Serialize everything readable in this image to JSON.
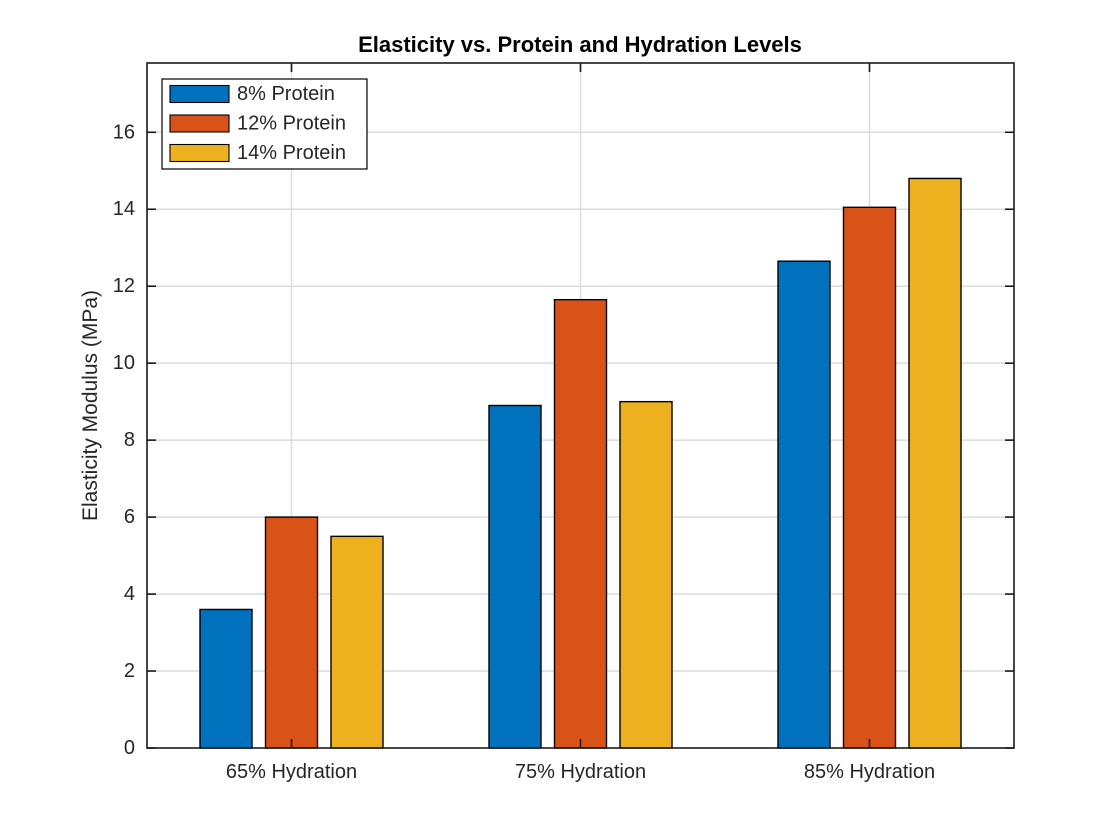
{
  "figure": {
    "background": "#ffffff"
  },
  "chart_data": {
    "type": "bar",
    "title": "Elasticity vs. Protein and Hydration Levels",
    "xlabel": "",
    "ylabel": "Elasticity Modulus (MPa)",
    "categories": [
      "65% Hydration",
      "75% Hydration",
      "85% Hydration"
    ],
    "series": [
      {
        "name": "8% Protein",
        "color": "#0072BD",
        "values": [
          3.6,
          8.9,
          12.65
        ]
      },
      {
        "name": "12% Protein",
        "color": "#D95319",
        "values": [
          6.0,
          11.65,
          14.05
        ]
      },
      {
        "name": "14% Protein",
        "color": "#EDB120",
        "values": [
          5.5,
          9.0,
          14.8
        ]
      }
    ],
    "ylim": [
      0,
      17.8
    ],
    "yticks": [
      0,
      2,
      4,
      6,
      8,
      10,
      12,
      14,
      16
    ],
    "grid": true,
    "legend_position": "top-left",
    "styles": {
      "bar_edge_color": "#000000",
      "grid_color": "#dcdcdc",
      "axis_color": "#1a1a1a",
      "text_color": "#262626",
      "legend_border_color": "#000000",
      "legend_background": "#ffffff"
    }
  }
}
